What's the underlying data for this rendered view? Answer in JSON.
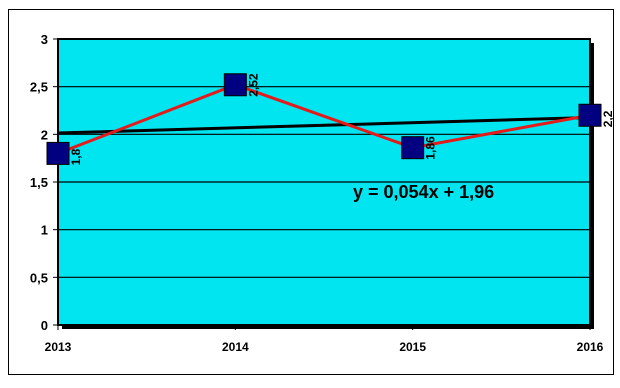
{
  "chart_data": {
    "type": "line",
    "categories": [
      "2013",
      "2014",
      "2015",
      "2016"
    ],
    "series": [
      {
        "values": [
          1.8,
          2.52,
          1.86,
          2.2
        ],
        "data_labels": [
          "1,8",
          "2,52",
          "1,86",
          "2,2"
        ],
        "line_color": "#e51a1a",
        "marker_color": "#000080"
      }
    ],
    "trendline": {
      "equation": "y = 0,054x + 1,96",
      "slope": 0.054,
      "intercept": 1.96,
      "color": "#000000"
    },
    "y_ticks": [
      0,
      0.5,
      1,
      1.5,
      2,
      2.5,
      3
    ],
    "y_tick_labels": [
      "0",
      "0,5",
      "1",
      "1,5",
      "2",
      "2,5",
      "3"
    ],
    "ylim": [
      0,
      3
    ],
    "grid": true,
    "plot_background": "#00e5ef",
    "title": "",
    "xlabel": "",
    "ylabel": ""
  }
}
